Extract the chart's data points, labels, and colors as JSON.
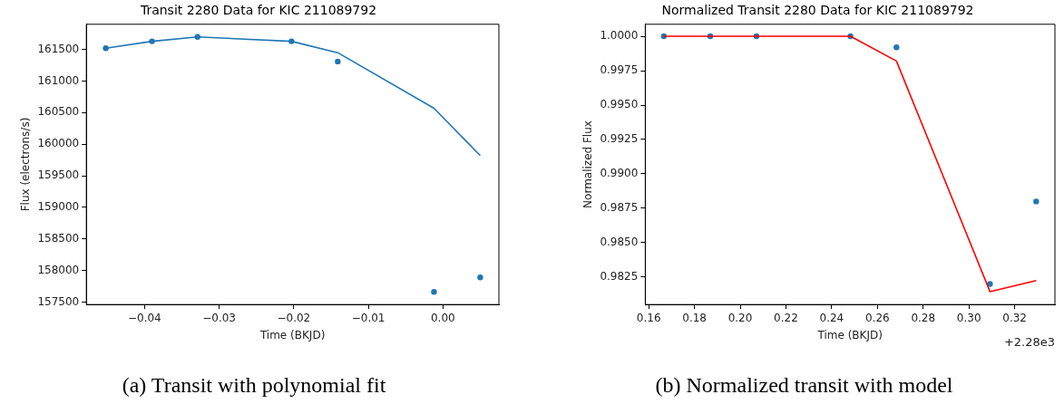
{
  "chart_data": [
    {
      "type": "scatter",
      "title": "Transit 2280 Data for KIC 211089792",
      "xlabel": "Time (BKJD)",
      "ylabel": "Flux (electrons/s)",
      "xlim": [
        -0.0478,
        0.0075
      ],
      "xticks": [
        {
          "value": -0.04,
          "label": "−0.04"
        },
        {
          "value": -0.03,
          "label": "−0.03"
        },
        {
          "value": -0.02,
          "label": "−0.02"
        },
        {
          "value": -0.01,
          "label": "−0.01"
        },
        {
          "value": 0,
          "label": "0.00"
        }
      ],
      "ylim": [
        157460,
        161900
      ],
      "yticks": [
        157500,
        158000,
        158500,
        159000,
        159500,
        160000,
        160500,
        161000,
        161500
      ],
      "grid": false,
      "annotations": [
        "(a) Transit with polynomial fit"
      ],
      "series": [
        {
          "type": "scatter",
          "marker": "circle",
          "color": "#1f77b4",
          "x": [
            -0.0452,
            -0.039,
            -0.0329,
            -0.0203,
            -0.0141,
            -0.0012,
            0.005
          ],
          "values": [
            161520,
            161630,
            161700,
            161630,
            161310,
            157660,
            157890
          ]
        },
        {
          "type": "line",
          "marker": "none",
          "color": "#1f77b4",
          "x": [
            -0.0452,
            -0.039,
            -0.0329,
            -0.0203,
            -0.0141,
            -0.0012,
            0.005
          ],
          "values": [
            161520,
            161630,
            161700,
            161630,
            161450,
            160570,
            159820
          ]
        }
      ]
    },
    {
      "type": "scatter",
      "title": "Normalized Transit 2280 Data for KIC 211089792",
      "xlabel": "Time (BKJD)",
      "ylabel": "Normalized Flux",
      "xlim": [
        0.1585,
        0.3376
      ],
      "xticks": [
        0.16,
        0.18,
        {
          "value": 0.2,
          "label": "0.20"
        },
        0.22,
        0.24,
        0.26,
        0.28,
        {
          "value": 0.3,
          "label": "0.30"
        },
        0.32
      ],
      "ylim": [
        0.98051,
        1.00087
      ],
      "yticks": [
        {
          "value": 0.9825,
          "label": "0.9825"
        },
        {
          "value": 0.985,
          "label": "0.9850"
        },
        {
          "value": 0.9875,
          "label": "0.9875"
        },
        {
          "value": 0.99,
          "label": "0.9900"
        },
        {
          "value": 0.9925,
          "label": "0.9925"
        },
        {
          "value": 0.995,
          "label": "0.9950"
        },
        {
          "value": 0.9975,
          "label": "0.9975"
        },
        {
          "value": 1,
          "label": "1.0000"
        }
      ],
      "grid": false,
      "annotations": [
        "+2.28e3",
        "(b) Normalized transit with model"
      ],
      "series": [
        {
          "type": "scatter",
          "marker": "circle",
          "color": "#1f77b4",
          "x": [
            0.1666,
            0.1869,
            0.2071,
            0.2482,
            0.2683,
            0.3092,
            0.3294
          ],
          "values": [
            1.0,
            1.0,
            1.0,
            1.0,
            0.9992,
            0.982,
            0.988
          ]
        },
        {
          "type": "line",
          "marker": "none",
          "color": "#ff0000",
          "x": [
            0.1666,
            0.1869,
            0.2071,
            0.2482,
            0.2683,
            0.3092,
            0.3294
          ],
          "values": [
            1.0,
            1.0,
            1.0,
            1.0,
            0.9982,
            0.98145,
            0.98225
          ]
        }
      ]
    }
  ]
}
